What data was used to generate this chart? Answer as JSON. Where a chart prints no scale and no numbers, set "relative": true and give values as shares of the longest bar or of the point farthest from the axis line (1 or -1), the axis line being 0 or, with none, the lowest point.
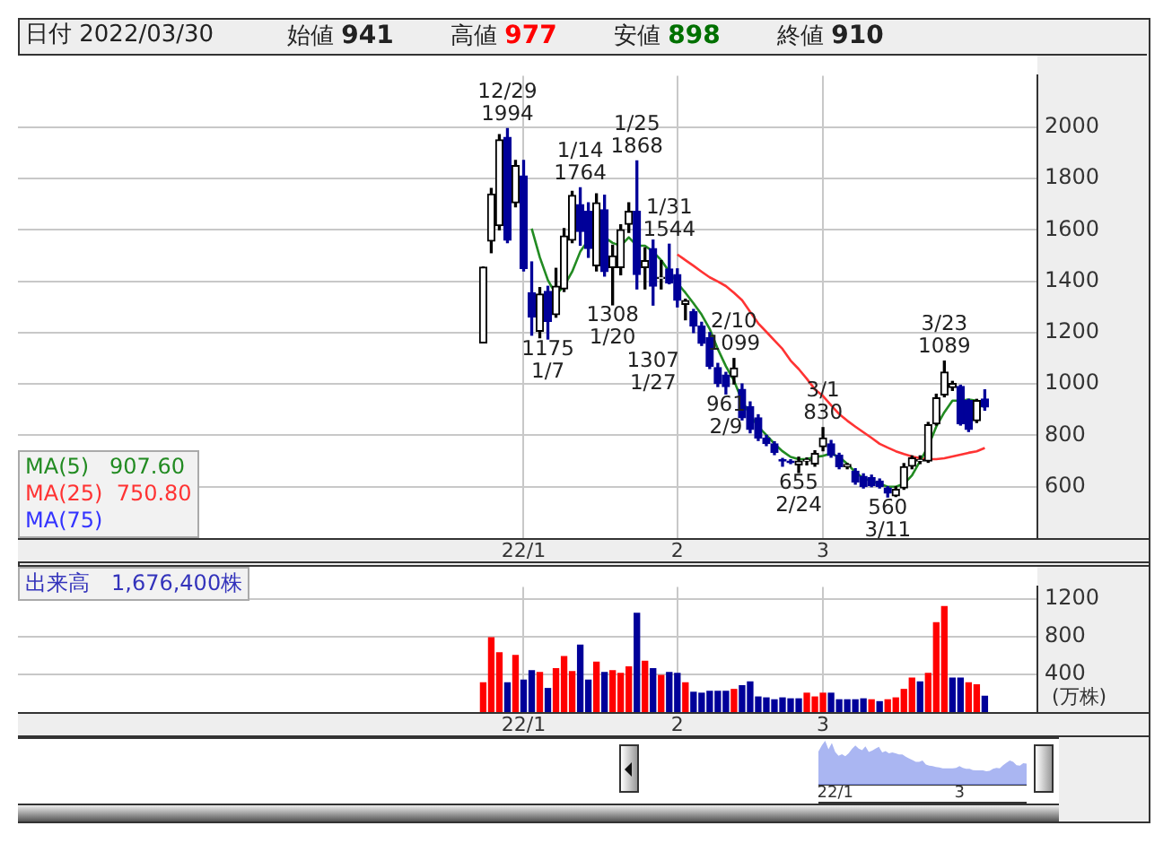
{
  "chart_data": [
    {
      "type": "candlestick",
      "title": "日付 2022/03/30",
      "annotations": [
        "始値 941",
        "高値 977",
        "安値 898",
        "終値 910",
        {
          "text": "12/29\n1994",
          "y": 1994
        },
        {
          "text": "1175\n1/7",
          "y": 1175
        },
        {
          "text": "1/14\n1764",
          "y": 1764
        },
        {
          "text": "1308\n1/20",
          "y": 1308
        },
        {
          "text": "1/25\n1868",
          "y": 1868
        },
        {
          "text": "1307\n1/27",
          "y": 1307
        },
        {
          "text": "1/31\n1544",
          "y": 1544
        },
        {
          "text": "961\n2/9",
          "y": 961
        },
        {
          "text": "2/10\n1099",
          "y": 1099
        },
        {
          "text": "655\n2/24",
          "y": 655
        },
        {
          "text": "3/1\n830",
          "y": 830
        },
        {
          "text": "560\n3/11",
          "y": 560
        },
        {
          "text": "3/23\n1089",
          "y": 1089
        }
      ],
      "categories": [
        null,
        null,
        null,
        null,
        null,
        null,
        null,
        null,
        null,
        null,
        null,
        null,
        null,
        null,
        null,
        null,
        null,
        null,
        null,
        null,
        null,
        null,
        null,
        null,
        null,
        null,
        null,
        null,
        null,
        null,
        null,
        null,
        null,
        null,
        null,
        null,
        null,
        null,
        null,
        null,
        null,
        null,
        null,
        null,
        null,
        null,
        null,
        null,
        null,
        null,
        null,
        null,
        null,
        null,
        null,
        null,
        null,
        null,
        null,
        null,
        null,
        null,
        "22/1",
        null,
        null,
        null,
        null,
        null,
        null,
        null,
        null,
        null,
        null,
        null,
        null,
        null,
        null,
        null,
        null,
        null,
        null,
        "2",
        null,
        null,
        null,
        null,
        null,
        null,
        null,
        null,
        null,
        null,
        null,
        null,
        null,
        null,
        null,
        null,
        null,
        "3",
        null,
        null,
        null,
        null,
        null,
        null,
        null,
        null,
        null,
        null,
        null,
        null,
        null,
        null,
        null,
        null,
        null,
        null,
        null,
        null,
        null,
        null,
        null,
        null,
        null,
        null
      ],
      "ohlc": [
        null,
        null,
        null,
        null,
        null,
        null,
        null,
        null,
        null,
        null,
        null,
        null,
        null,
        null,
        null,
        null,
        null,
        null,
        null,
        null,
        null,
        null,
        null,
        null,
        null,
        null,
        null,
        null,
        null,
        null,
        null,
        null,
        null,
        null,
        null,
        null,
        null,
        null,
        null,
        null,
        null,
        null,
        null,
        null,
        null,
        null,
        null,
        null,
        null,
        null,
        null,
        null,
        null,
        null,
        null,
        null,
        null,
        [
          1160,
          1455,
          1160,
          1455
        ],
        [
          1556,
          1761,
          1511,
          1739
        ],
        [
          1616,
          1970,
          1600,
          1950
        ],
        [
          1960,
          1994,
          1550,
          1560
        ],
        [
          1705,
          1870,
          1690,
          1850
        ],
        [
          1810,
          1870,
          1440,
          1450
        ],
        [
          1355,
          1475,
          1190,
          1260
        ],
        [
          1205,
          1375,
          1180,
          1350
        ],
        [
          1360,
          1380,
          1175,
          1244
        ],
        [
          1270,
          1450,
          1260,
          1380
        ],
        [
          1370,
          1605,
          1360,
          1576
        ],
        [
          1560,
          1750,
          1550,
          1734
        ],
        [
          1698,
          1764,
          1540,
          1594
        ],
        [
          1672,
          1705,
          1493,
          1527
        ],
        [
          1460,
          1740,
          1440,
          1705
        ],
        [
          1678,
          1735,
          1420,
          1437
        ],
        [
          1453,
          1540,
          1308,
          1498
        ],
        [
          1453,
          1620,
          1425,
          1600
        ],
        [
          1622,
          1705,
          1590,
          1672
        ],
        [
          1672,
          1868,
          1370,
          1426
        ],
        [
          1453,
          1530,
          1370,
          1480
        ],
        [
          1527,
          1560,
          1307,
          1381
        ],
        [
          1410,
          1480,
          1370,
          1415
        ],
        [
          1448,
          1544,
          1390,
          1393
        ],
        [
          1426,
          1448,
          1300,
          1326
        ],
        [
          1310,
          1330,
          1250,
          1325
        ],
        [
          1281,
          1290,
          1200,
          1225
        ],
        [
          1225,
          1240,
          1150,
          1158
        ],
        [
          1180,
          1200,
          1060,
          1069
        ],
        [
          1064,
          1080,
          990,
          1002
        ],
        [
          1035,
          1045,
          961,
          990
        ],
        [
          1028,
          1099,
          1000,
          1062
        ],
        [
          979,
          1000,
          860,
          868
        ],
        [
          912,
          930,
          810,
          823
        ],
        [
          868,
          880,
          780,
          790
        ],
        [
          790,
          800,
          760,
          768
        ],
        [
          767,
          775,
          725,
          734
        ],
        [
          705,
          710,
          680,
          700
        ],
        [
          700,
          705,
          690,
          694
        ],
        [
          685,
          715,
          655,
          700
        ],
        [
          700,
          712,
          685,
          705
        ],
        [
          689,
          740,
          680,
          729
        ],
        [
          756,
          830,
          740,
          790
        ],
        [
          767,
          780,
          715,
          722
        ],
        [
          722,
          730,
          670,
          678
        ],
        [
          678,
          690,
          670,
          687
        ],
        [
          660,
          670,
          610,
          618
        ],
        [
          640,
          650,
          595,
          600
        ],
        [
          635,
          645,
          600,
          605
        ],
        [
          622,
          630,
          595,
          600
        ],
        [
          595,
          600,
          560,
          575
        ],
        [
          565,
          600,
          562,
          590
        ],
        [
          595,
          690,
          590,
          678
        ],
        [
          680,
          720,
          670,
          712
        ],
        [
          700,
          720,
          690,
          705
        ],
        [
          700,
          850,
          695,
          841
        ],
        [
          845,
          960,
          840,
          946
        ],
        [
          957,
          1089,
          950,
          1046
        ],
        [
          986,
          1010,
          975,
          1002
        ],
        [
          990,
          995,
          840,
          845
        ],
        [
          935,
          940,
          815,
          823
        ],
        [
          857,
          940,
          850,
          935
        ],
        [
          941,
          977,
          898,
          910
        ],
        null,
        null,
        null,
        null,
        null,
        null
      ],
      "series": [
        {
          "name": "MA(5)   907.60",
          "type": "line",
          "color": "#228b22",
          "values": [
            null,
            null,
            null,
            null,
            null,
            null,
            null,
            null,
            null,
            null,
            null,
            null,
            null,
            null,
            null,
            null,
            null,
            null,
            null,
            null,
            null,
            null,
            null,
            null,
            null,
            null,
            null,
            null,
            null,
            null,
            null,
            null,
            null,
            null,
            null,
            null,
            null,
            null,
            null,
            null,
            null,
            null,
            null,
            null,
            null,
            null,
            null,
            null,
            null,
            null,
            null,
            null,
            null,
            null,
            null,
            null,
            null,
            null,
            null,
            null,
            null,
            null,
            null,
            1605,
            1493,
            1404,
            1348,
            1381,
            1437,
            1515,
            1560,
            null,
            1571,
            1549,
            1538,
            1571,
            1538,
            1538,
            1515,
            1482,
            1437,
            1393,
            1355,
            1314,
            1270,
            1214,
            1136,
            1069,
            1013,
            935,
            879,
            834,
            801,
            767,
            738,
            716,
            707,
            707,
            716,
            720,
            729,
            716,
            689,
            656,
            633,
            622,
            611,
            600,
            600,
            611,
            644,
            700,
            756,
            834,
            890,
            935,
            935,
            939,
            935,
            907.6,
            null,
            null,
            null,
            null,
            null,
            null
          ]
        },
        {
          "name": "MA(25)  750.80",
          "type": "line",
          "color": "#ff3333",
          "values": [
            null,
            null,
            null,
            null,
            null,
            null,
            null,
            null,
            null,
            null,
            null,
            null,
            null,
            null,
            null,
            null,
            null,
            null,
            null,
            null,
            null,
            null,
            null,
            null,
            null,
            null,
            null,
            null,
            null,
            null,
            null,
            null,
            null,
            null,
            null,
            null,
            null,
            null,
            null,
            null,
            null,
            null,
            null,
            null,
            null,
            null,
            null,
            null,
            null,
            null,
            null,
            null,
            null,
            null,
            null,
            null,
            null,
            null,
            null,
            null,
            null,
            null,
            null,
            null,
            null,
            null,
            null,
            null,
            null,
            null,
            null,
            null,
            null,
            null,
            null,
            null,
            null,
            null,
            null,
            null,
            null,
            1504,
            1482,
            1460,
            1437,
            1415,
            1399,
            1381,
            1355,
            1326,
            1281,
            1236,
            1203,
            1169,
            1136,
            1091,
            1058,
            1020,
            979,
            953,
            917,
            883,
            857,
            834,
            812,
            790,
            767,
            752,
            738,
            727,
            718,
            711,
            707,
            707,
            711,
            718,
            725,
            732,
            738,
            750.8,
            null,
            null,
            null,
            null,
            null,
            null
          ]
        },
        {
          "name": "MA(75)",
          "type": "line",
          "color": "#3333ff",
          "values": [
            null,
            null,
            null,
            null,
            null,
            null,
            null,
            null,
            null,
            null,
            null,
            null,
            null,
            null,
            null,
            null,
            null,
            null,
            null,
            null,
            null,
            null,
            null,
            null,
            null,
            null,
            null,
            null,
            null,
            null,
            null,
            null,
            null,
            null,
            null,
            null,
            null,
            null,
            null,
            null,
            null,
            null,
            null,
            null,
            null,
            null,
            null,
            null,
            null,
            null,
            null,
            null,
            null,
            null,
            null,
            null,
            null,
            null,
            null,
            null,
            null,
            null,
            null,
            null,
            null,
            null,
            null,
            null,
            null,
            null,
            null,
            null,
            null,
            null,
            null,
            null,
            null,
            null,
            null,
            null,
            null,
            null,
            null,
            null,
            null,
            null,
            null,
            null,
            null,
            null,
            null,
            null,
            null,
            null,
            null,
            null,
            null,
            null,
            null,
            null,
            null,
            null,
            null,
            null,
            null,
            null,
            null,
            null,
            null,
            null,
            null,
            null,
            null,
            null,
            null,
            null,
            null,
            null,
            null,
            null,
            null,
            null,
            null,
            null,
            null,
            null
          ]
        }
      ],
      "ylim": [
        400,
        2200
      ],
      "yticks": [
        600,
        800,
        1000,
        1200,
        1400,
        1600,
        1800,
        2000
      ],
      "grid": true,
      "legend": "bottom left",
      "marker": "none"
    },
    {
      "type": "bar",
      "title": "出来高　1,676,400株",
      "ylabel": "(万株)",
      "categories": [
        null,
        null,
        null,
        null,
        null,
        null,
        null,
        null,
        null,
        null,
        null,
        null,
        null,
        null,
        null,
        null,
        null,
        null,
        null,
        null,
        null,
        null,
        null,
        null,
        null,
        null,
        null,
        null,
        null,
        null,
        null,
        null,
        null,
        null,
        null,
        null,
        null,
        null,
        null,
        null,
        null,
        null,
        null,
        null,
        null,
        null,
        null,
        null,
        null,
        null,
        null,
        null,
        null,
        null,
        null,
        null,
        null,
        null,
        null,
        null,
        null,
        null,
        "22/1",
        null,
        null,
        null,
        null,
        null,
        null,
        null,
        null,
        null,
        null,
        null,
        null,
        null,
        null,
        null,
        null,
        null,
        null,
        "2",
        null,
        null,
        null,
        null,
        null,
        null,
        null,
        null,
        null,
        null,
        null,
        null,
        null,
        null,
        null,
        null,
        null,
        "3",
        null,
        null,
        null,
        null,
        null,
        null,
        null,
        null,
        null,
        null,
        null,
        null,
        null,
        null,
        null,
        null,
        null,
        null,
        null,
        null,
        null,
        null,
        null,
        null,
        null,
        null
      ],
      "values": [
        null,
        null,
        null,
        null,
        null,
        null,
        null,
        null,
        null,
        null,
        null,
        null,
        null,
        null,
        null,
        null,
        null,
        null,
        null,
        null,
        null,
        null,
        null,
        null,
        null,
        null,
        null,
        null,
        null,
        null,
        null,
        null,
        null,
        null,
        null,
        null,
        null,
        null,
        null,
        null,
        null,
        null,
        null,
        null,
        null,
        null,
        null,
        null,
        null,
        null,
        null,
        null,
        null,
        null,
        null,
        null,
        null,
        310,
        790,
        630,
        310,
        600,
        340,
        440,
        420,
        250,
        460,
        590,
        430,
        710,
        340,
        530,
        420,
        440,
        410,
        480,
        1050,
        540,
        460,
        390,
        420,
        410,
        310,
        210,
        200,
        220,
        220,
        220,
        240,
        280,
        320,
        160,
        150,
        130,
        150,
        140,
        140,
        200,
        160,
        200,
        200,
        130,
        130,
        130,
        140,
        130,
        110,
        130,
        150,
        240,
        360,
        320,
        410,
        950,
        1120,
        360,
        360,
        310,
        290,
        167.64,
        null,
        null,
        null,
        null,
        null,
        null
      ],
      "colors": [
        null,
        null,
        null,
        null,
        null,
        null,
        null,
        null,
        null,
        null,
        null,
        null,
        null,
        null,
        null,
        null,
        null,
        null,
        null,
        null,
        null,
        null,
        null,
        null,
        null,
        null,
        null,
        null,
        null,
        null,
        null,
        null,
        null,
        null,
        null,
        null,
        null,
        null,
        null,
        null,
        null,
        null,
        null,
        null,
        null,
        null,
        null,
        null,
        null,
        null,
        null,
        null,
        null,
        null,
        null,
        null,
        null,
        "#ff0000",
        "#ff0000",
        "#ff0000",
        "#000099",
        "#ff0000",
        "#000099",
        "#000099",
        "#ff0000",
        "#000099",
        "#ff0000",
        "#ff0000",
        "#ff0000",
        "#000099",
        "#000099",
        "#ff0000",
        "#000099",
        "#ff0000",
        "#ff0000",
        "#ff0000",
        "#000099",
        "#ff0000",
        "#000099",
        "#ff0000",
        "#000099",
        "#000099",
        "#ff0000",
        "#000099",
        "#000099",
        "#000099",
        "#000099",
        "#000099",
        "#ff0000",
        "#000099",
        "#000099",
        "#000099",
        "#000099",
        "#000099",
        "#000099",
        "#000099",
        "#000099",
        "#ff0000",
        "#ff0000",
        "#ff0000",
        "#000099",
        "#000099",
        "#000099",
        "#000099",
        "#000099",
        "#ff0000",
        "#000099",
        "#ff0000",
        "#ff0000",
        "#ff0000",
        "#ff0000",
        "#000099",
        "#ff0000",
        "#ff0000",
        "#ff0000",
        "#000099",
        "#000099",
        "#ff0000",
        "#ff0000",
        "#000099",
        null,
        null,
        null,
        null,
        null,
        null
      ],
      "ylim": [
        0,
        1330
      ],
      "yticks": [
        400,
        800,
        1200
      ],
      "grid": true
    },
    {
      "type": "area",
      "relative": true,
      "color": "#aab6f2",
      "categories": [
        null,
        null,
        null,
        null,
        null,
        "22/1",
        null,
        null,
        null,
        null,
        null,
        null,
        null,
        null,
        null,
        null,
        null,
        null,
        null,
        null,
        null,
        null,
        null,
        null,
        null,
        null,
        null,
        null,
        null,
        null,
        null,
        null,
        null,
        null,
        null,
        null,
        null,
        null,
        null,
        null,
        null,
        null,
        "3",
        null,
        null,
        null,
        null,
        null,
        null,
        null,
        null,
        null,
        null,
        null,
        null,
        null,
        null,
        null,
        null,
        null,
        null,
        null,
        null
      ],
      "values": [
        0.75,
        0.89,
        1,
        0.8,
        0.95,
        0.74,
        0.65,
        0.69,
        0.64,
        0.71,
        0.81,
        0.89,
        0.82,
        0.78,
        0.87,
        0.74,
        0.77,
        0.82,
        0.86,
        0.73,
        0.76,
        0.71,
        0.73,
        0.71,
        0.68,
        0.68,
        0.63,
        0.59,
        0.55,
        0.51,
        0.51,
        0.54,
        0.45,
        0.42,
        0.41,
        0.39,
        0.38,
        0.36,
        0.36,
        0.36,
        0.36,
        0.37,
        0.41,
        0.37,
        0.35,
        0.35,
        0.32,
        0.31,
        0.31,
        0.31,
        0.29,
        0.3,
        0.35,
        0.37,
        0.36,
        0.43,
        0.49,
        0.54,
        0.51,
        0.43,
        0.42,
        0.48,
        0.47
      ]
    }
  ]
}
